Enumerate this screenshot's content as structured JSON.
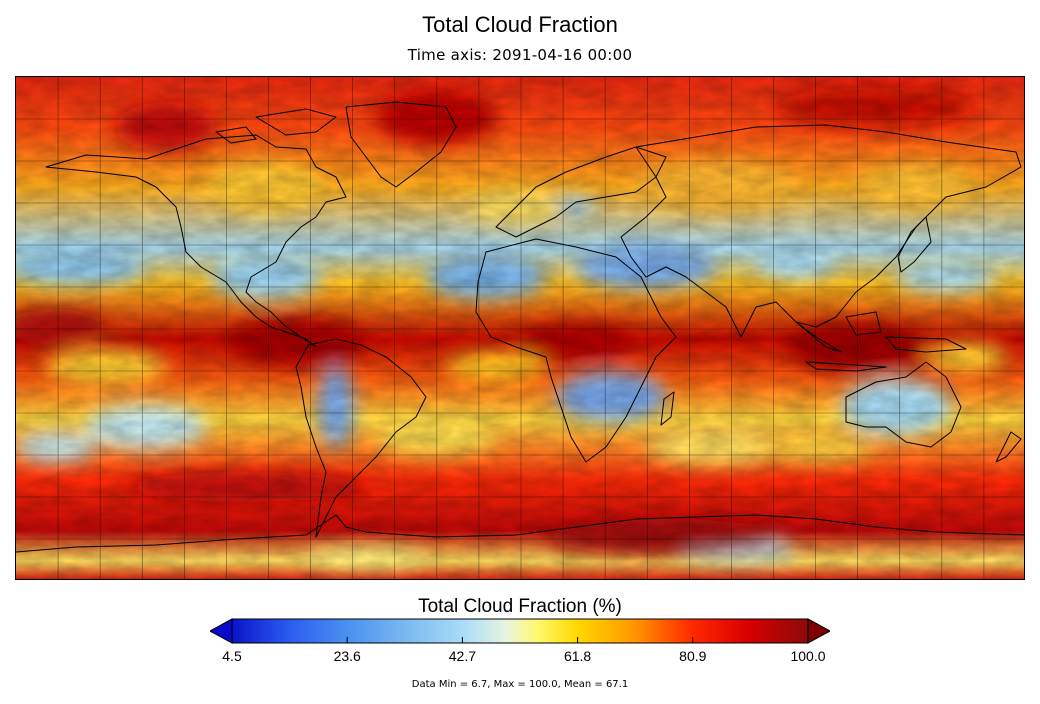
{
  "title": "Total Cloud Fraction",
  "subtitle": "Time axis: 2091-04-16 00:00",
  "colorbar": {
    "title": "Total Cloud Fraction (%)",
    "ticks": [
      "4.5",
      "23.6",
      "42.7",
      "61.8",
      "80.9",
      "100.0"
    ],
    "range": [
      4.5,
      100.0
    ],
    "stops": [
      {
        "value": 4.5,
        "color": "#0a14c8"
      },
      {
        "value": 14.0,
        "color": "#2a5cf0"
      },
      {
        "value": 23.6,
        "color": "#4a90f0"
      },
      {
        "value": 33.0,
        "color": "#78b8f0"
      },
      {
        "value": 42.7,
        "color": "#a8dcf8"
      },
      {
        "value": 50.0,
        "color": "#e8f4e0"
      },
      {
        "value": 55.0,
        "color": "#fff870"
      },
      {
        "value": 61.8,
        "color": "#ffd800"
      },
      {
        "value": 71.0,
        "color": "#ff9800"
      },
      {
        "value": 80.9,
        "color": "#ff2800"
      },
      {
        "value": 90.0,
        "color": "#d80000"
      },
      {
        "value": 100.0,
        "color": "#8c0a0a"
      }
    ],
    "under_color": "#0a0acc",
    "over_color": "#800000"
  },
  "stats": "Data Min = 6.7, Max = 100.0, Mean = 67.1",
  "map": {
    "projection": "equirectangular",
    "lon_range": [
      -180,
      180
    ],
    "lat_range": [
      -90,
      90
    ],
    "grid_spacing_deg": 15,
    "coastline_color": "#000000"
  }
}
